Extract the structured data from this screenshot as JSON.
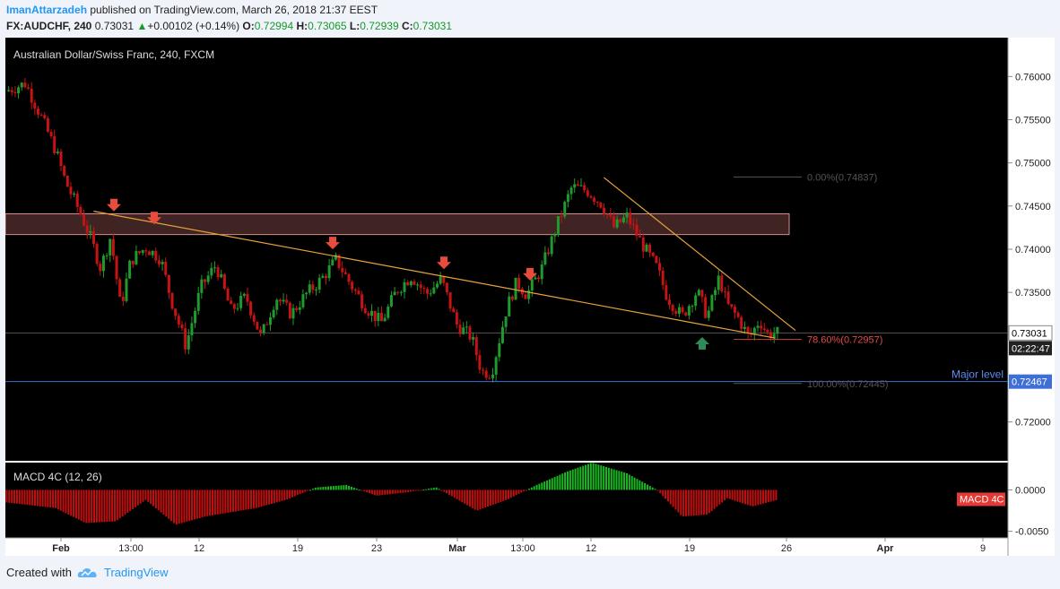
{
  "header": {
    "author": "ImanAttarzadeh",
    "published": "published on TradingView.com, March 26, 2018 21:37 EEST",
    "symbol": "FX:AUDCHF, 240",
    "last": "0.73031",
    "change": "+0.00102 (+0.14%)",
    "o_label": "O:",
    "o": "0.72994",
    "h_label": "H:",
    "h": "0.73065",
    "l_label": "L:",
    "l": "0.72939",
    "c_label": "C:",
    "c": "0.73031"
  },
  "footer": {
    "created_with": "Created with",
    "brand": "TradingView"
  },
  "colors": {
    "up": "#26a69a",
    "candle_up": "#1f9b2e",
    "candle_down": "#c61313",
    "trend": "#e8a33a",
    "major": "#3d6fd6",
    "price_tag": "#ffffff",
    "macd_pos": "#19b822",
    "macd_neg": "#c10f0f",
    "arrow_down": "#e74c3c",
    "arrow_up": "#2e8b57"
  },
  "chart_data": [
    {
      "type": "candlestick",
      "title": "Australian Dollar/Swiss Franc, 240, FXCM",
      "ylim": [
        0.7155,
        0.7645
      ],
      "y_ticks": [
        0.76,
        0.755,
        0.75,
        0.745,
        0.74,
        0.735,
        0.73031,
        0.72467,
        0.72
      ],
      "y_tick_labels": [
        "0.76000",
        "0.75500",
        "0.75000",
        "0.74500",
        "0.74000",
        "0.73500",
        "0.73031",
        "0.72467",
        "0.72000"
      ],
      "x_tick_labels": [
        "Feb",
        "13:00",
        "12",
        "19",
        "23",
        "Mar",
        "13:00",
        "12",
        "19",
        "26",
        "Apr",
        "9"
      ],
      "last_price": "0.73031",
      "countdown": "02:22:47",
      "major_level": {
        "label": "Major level",
        "value": 0.72467,
        "value_label": "0.72467"
      },
      "supply_zone": {
        "from": 0.7417,
        "to": 0.7441
      },
      "fib_levels": [
        {
          "label": "0.00%(0.74837)",
          "value": 0.74837
        },
        {
          "label": "78.60%(0.72957)",
          "value": 0.72957
        },
        {
          "label": "100.00%(0.72445)",
          "value": 0.72445
        }
      ],
      "trendlines": [
        {
          "name": "descending support",
          "from": [
            0.088,
            0.7444
          ],
          "to": [
            0.768,
            0.7297
          ]
        },
        {
          "name": "descending resistance",
          "from": [
            0.597,
            0.7483
          ],
          "to": [
            0.788,
            0.7306
          ]
        }
      ],
      "down_arrows": [
        0.7448,
        0.7433,
        0.7404,
        0.7381,
        0.7368
      ],
      "up_arrows": [
        0.729
      ],
      "price_path": [
        [
          0.0,
          0.7583
        ],
        [
          0.02,
          0.7592
        ],
        [
          0.035,
          0.7555
        ],
        [
          0.05,
          0.7515
        ],
        [
          0.06,
          0.7478
        ],
        [
          0.075,
          0.7441
        ],
        [
          0.085,
          0.7413
        ],
        [
          0.095,
          0.7378
        ],
        [
          0.105,
          0.7415
        ],
        [
          0.115,
          0.7332
        ],
        [
          0.125,
          0.7387
        ],
        [
          0.14,
          0.7402
        ],
        [
          0.155,
          0.7389
        ],
        [
          0.165,
          0.7343
        ],
        [
          0.18,
          0.7288
        ],
        [
          0.195,
          0.7356
        ],
        [
          0.21,
          0.7382
        ],
        [
          0.225,
          0.7329
        ],
        [
          0.24,
          0.7345
        ],
        [
          0.255,
          0.7298
        ],
        [
          0.27,
          0.7345
        ],
        [
          0.285,
          0.7325
        ],
        [
          0.3,
          0.7348
        ],
        [
          0.315,
          0.7365
        ],
        [
          0.33,
          0.7388
        ],
        [
          0.345,
          0.7358
        ],
        [
          0.36,
          0.7332
        ],
        [
          0.375,
          0.7315
        ],
        [
          0.39,
          0.7352
        ],
        [
          0.405,
          0.7369
        ],
        [
          0.42,
          0.7348
        ],
        [
          0.435,
          0.7365
        ],
        [
          0.45,
          0.7313
        ],
        [
          0.465,
          0.7298
        ],
        [
          0.475,
          0.7258
        ],
        [
          0.485,
          0.7257
        ],
        [
          0.5,
          0.7332
        ],
        [
          0.51,
          0.7362
        ],
        [
          0.52,
          0.7347
        ],
        [
          0.535,
          0.7378
        ],
        [
          0.55,
          0.7427
        ],
        [
          0.565,
          0.7472
        ],
        [
          0.58,
          0.7468
        ],
        [
          0.595,
          0.7452
        ],
        [
          0.607,
          0.7425
        ],
        [
          0.62,
          0.7438
        ],
        [
          0.635,
          0.7406
        ],
        [
          0.65,
          0.7378
        ],
        [
          0.66,
          0.7345
        ],
        [
          0.675,
          0.7322
        ],
        [
          0.69,
          0.7352
        ],
        [
          0.7,
          0.7322
        ],
        [
          0.712,
          0.7368
        ],
        [
          0.72,
          0.7335
        ],
        [
          0.73,
          0.7322
        ],
        [
          0.742,
          0.7297
        ],
        [
          0.752,
          0.7318
        ],
        [
          0.76,
          0.7302
        ],
        [
          0.77,
          0.7303
        ]
      ]
    },
    {
      "type": "bar",
      "title": "MACD 4C (12, 26)",
      "badge": "MACD 4C",
      "ylim": [
        -0.0058,
        0.0033
      ],
      "y_ticks": [
        0.0,
        -0.005
      ],
      "y_tick_labels": [
        "0.0000",
        "-0.0050"
      ],
      "histogram_path": [
        [
          0.0,
          -0.0015
        ],
        [
          0.05,
          -0.0022
        ],
        [
          0.08,
          -0.004
        ],
        [
          0.11,
          -0.0038
        ],
        [
          0.14,
          -0.0012
        ],
        [
          0.17,
          -0.0042
        ],
        [
          0.2,
          -0.0032
        ],
        [
          0.25,
          -0.0022
        ],
        [
          0.28,
          -0.0012
        ],
        [
          0.31,
          0.0003
        ],
        [
          0.34,
          0.0006
        ],
        [
          0.37,
          -0.0007
        ],
        [
          0.4,
          -0.0003
        ],
        [
          0.43,
          0.0003
        ],
        [
          0.47,
          -0.0025
        ],
        [
          0.5,
          -0.0012
        ],
        [
          0.53,
          0.0006
        ],
        [
          0.56,
          0.0022
        ],
        [
          0.585,
          0.0033
        ],
        [
          0.62,
          0.002
        ],
        [
          0.65,
          0.0
        ],
        [
          0.675,
          -0.0032
        ],
        [
          0.7,
          -0.003
        ],
        [
          0.72,
          -0.001
        ],
        [
          0.745,
          -0.002
        ],
        [
          0.77,
          -0.0012
        ]
      ]
    }
  ]
}
